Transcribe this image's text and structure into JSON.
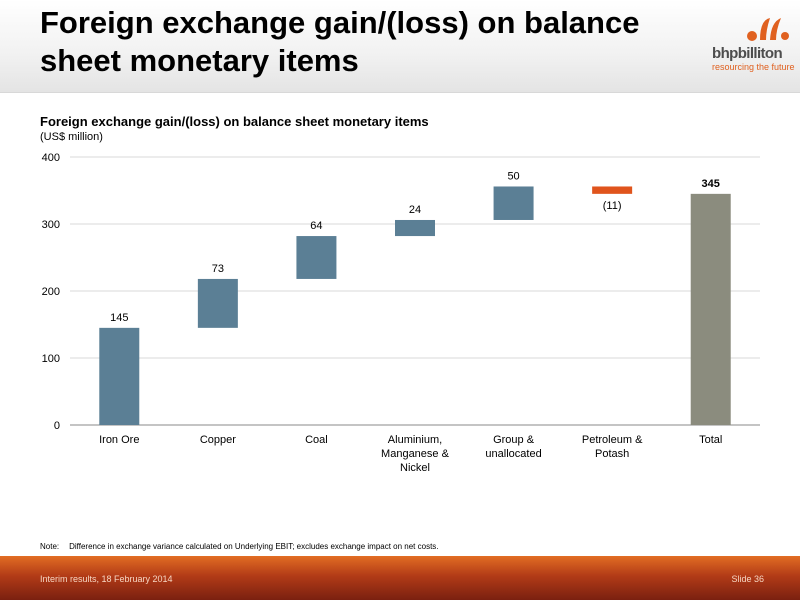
{
  "slide": {
    "title": "Foreign exchange gain/(loss) on balance sheet monetary items",
    "logo_name": "bhpbilliton",
    "logo_tagline": "resourcing the future"
  },
  "chart_data": {
    "type": "bar",
    "subtype": "waterfall",
    "title": "Foreign exchange gain/(loss) on balance sheet monetary items",
    "subtitle": "(US$ million)",
    "categories": [
      [
        "Iron Ore"
      ],
      [
        "Copper"
      ],
      [
        "Coal"
      ],
      [
        "Aluminium,",
        "Manganese &",
        "Nickel"
      ],
      [
        "Group &",
        "unallocated"
      ],
      [
        "Petroleum &",
        "Potash"
      ],
      [
        "Total"
      ]
    ],
    "values": [
      145,
      73,
      64,
      24,
      50,
      -11,
      345
    ],
    "labels": [
      "145",
      "73",
      "64",
      "24",
      "50",
      "(11)",
      "345"
    ],
    "is_total": [
      false,
      false,
      false,
      false,
      false,
      false,
      true
    ],
    "ylim": [
      0,
      400
    ],
    "yticks": [
      0,
      100,
      200,
      300,
      400
    ],
    "grid": true,
    "colors": {
      "gain": "#5b7f95",
      "loss": "#e0541c",
      "total": "#8b8c7e",
      "grid": "#d9d9d9"
    }
  },
  "note": {
    "label": "Note:",
    "text": "Difference in exchange variance calculated on Underlying EBIT; excludes exchange impact on net costs."
  },
  "footer": {
    "left": "Interim results, 18 February 2014",
    "right": "Slide 36"
  }
}
